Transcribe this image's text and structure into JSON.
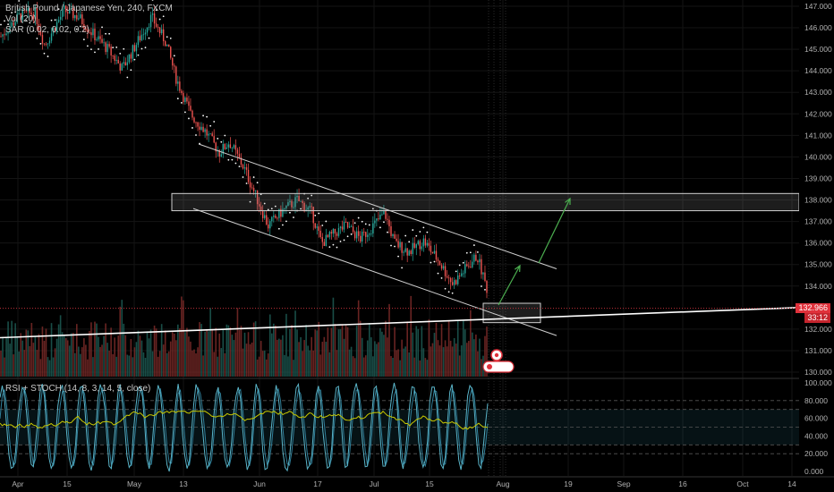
{
  "header": {
    "title": "British Pound / Japanese Yen, 240, FXCM",
    "vol_label": "Vol (20)",
    "sar_label": "SAR (0.02, 0.02, 0.2)",
    "osc_label": "RSI + STOCH (14, 8, 3, 14, 5, close)"
  },
  "current": {
    "price": "132.966",
    "timer": "33:12"
  },
  "colors": {
    "background": "#000000",
    "up_candle": "#26a69a",
    "down_candle": "#ef5350",
    "sar_dots": "#ffffff",
    "trend_line": "#ffffff",
    "projection_arrow": "#4caf50",
    "price_badge": "#e0313b",
    "rsi_line": "#c8c800",
    "stoch_k": "#5ab4c8",
    "stoch_d": "#2f7f9a"
  },
  "icons": [
    "earnings-marker-icon",
    "dividend-marker-icon"
  ],
  "chart_data": [
    {
      "type": "candlestick",
      "title": "British Pound / Japanese Yen, 240, FXCM",
      "x_ticks": [
        "Apr",
        "15",
        "May",
        "13",
        "Jun",
        "17",
        "Jul",
        "15",
        "Aug",
        "19",
        "Sep",
        "16",
        "Oct",
        "14"
      ],
      "y_ticks": [
        "147.000",
        "146.000",
        "145.000",
        "144.000",
        "143.000",
        "142.000",
        "141.000",
        "140.000",
        "139.000",
        "138.000",
        "137.000",
        "136.000",
        "135.000",
        "134.000",
        "132.000",
        "131.000",
        "130.000"
      ],
      "ylim": [
        129.7,
        147.3
      ],
      "trend_path": [
        {
          "t": 0,
          "v": 145.6
        },
        {
          "t": 0.04,
          "v": 146.6
        },
        {
          "t": 0.07,
          "v": 146.7
        },
        {
          "t": 0.09,
          "v": 145.2
        },
        {
          "t": 0.11,
          "v": 146.0
        },
        {
          "t": 0.13,
          "v": 146.8
        },
        {
          "t": 0.16,
          "v": 146.5
        },
        {
          "t": 0.19,
          "v": 145.7
        },
        {
          "t": 0.22,
          "v": 145.0
        },
        {
          "t": 0.25,
          "v": 144.1
        },
        {
          "t": 0.28,
          "v": 145.3
        },
        {
          "t": 0.31,
          "v": 146.5
        },
        {
          "t": 0.34,
          "v": 145.3
        },
        {
          "t": 0.36,
          "v": 143.7
        },
        {
          "t": 0.39,
          "v": 142.0
        },
        {
          "t": 0.42,
          "v": 141.2
        },
        {
          "t": 0.45,
          "v": 140.2
        },
        {
          "t": 0.47,
          "v": 140.7
        },
        {
          "t": 0.5,
          "v": 139.5
        },
        {
          "t": 0.53,
          "v": 137.9
        },
        {
          "t": 0.55,
          "v": 136.8
        },
        {
          "t": 0.58,
          "v": 137.5
        },
        {
          "t": 0.61,
          "v": 138.0
        },
        {
          "t": 0.64,
          "v": 137.4
        },
        {
          "t": 0.66,
          "v": 136.0
        },
        {
          "t": 0.69,
          "v": 136.5
        },
        {
          "t": 0.71,
          "v": 136.8
        },
        {
          "t": 0.74,
          "v": 136.2
        },
        {
          "t": 0.77,
          "v": 136.9
        },
        {
          "t": 0.79,
          "v": 137.4
        },
        {
          "t": 0.81,
          "v": 136.0
        },
        {
          "t": 0.84,
          "v": 135.6
        },
        {
          "t": 0.87,
          "v": 136.1
        },
        {
          "t": 0.9,
          "v": 135.2
        },
        {
          "t": 0.93,
          "v": 134.1
        },
        {
          "t": 0.96,
          "v": 134.9
        },
        {
          "t": 0.98,
          "v": 135.4
        },
        {
          "t": 1.0,
          "v": 133.9
        }
      ],
      "current_price": 132.966
    },
    {
      "type": "line",
      "title": "RSI + STOCH (14, 8, 3, 14, 5, close)",
      "y_ticks": [
        "100.000",
        "80.000",
        "60.000",
        "40.000",
        "20.000",
        "0.000"
      ],
      "ylim": [
        -3,
        103
      ],
      "levels": [
        80,
        70,
        50,
        30,
        20
      ],
      "series": []
    }
  ]
}
